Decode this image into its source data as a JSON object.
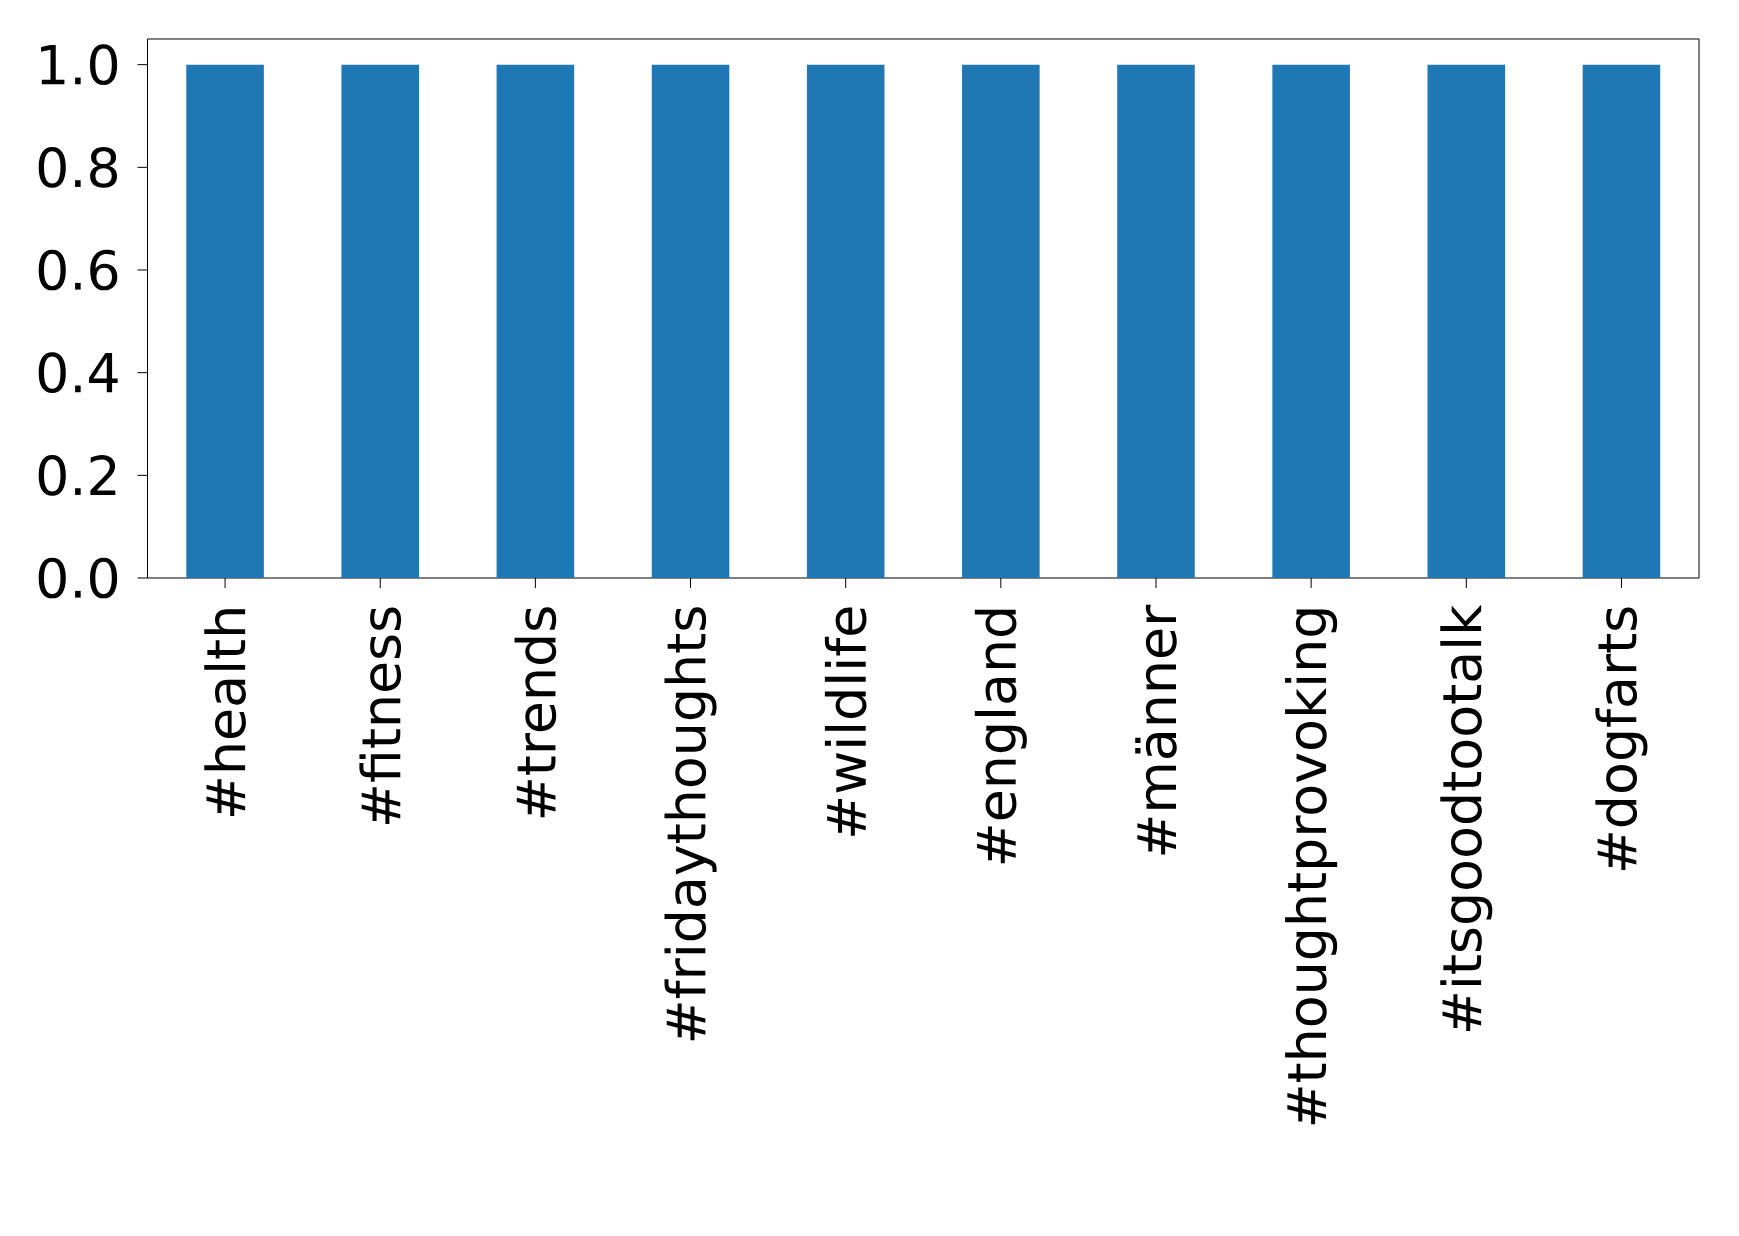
{
  "chart_data": {
    "type": "bar",
    "categories": [
      "#health",
      "#fitness",
      "#trends",
      "#fridaythoughts",
      "#wildlife",
      "#england",
      "#männer",
      "#thoughtprovoking",
      "#itsgoodtootalk",
      "#dogfarts"
    ],
    "values": [
      1.0,
      1.0,
      1.0,
      1.0,
      1.0,
      1.0,
      1.0,
      1.0,
      1.0,
      1.0
    ],
    "color": "#1f77b4",
    "ylim": [
      0,
      1.05
    ],
    "yticks": [
      {
        "value": 0,
        "label": "0.0"
      },
      0.2,
      0.4,
      0.6,
      0.8,
      {
        "value": 1,
        "label": "1.0"
      }
    ]
  }
}
